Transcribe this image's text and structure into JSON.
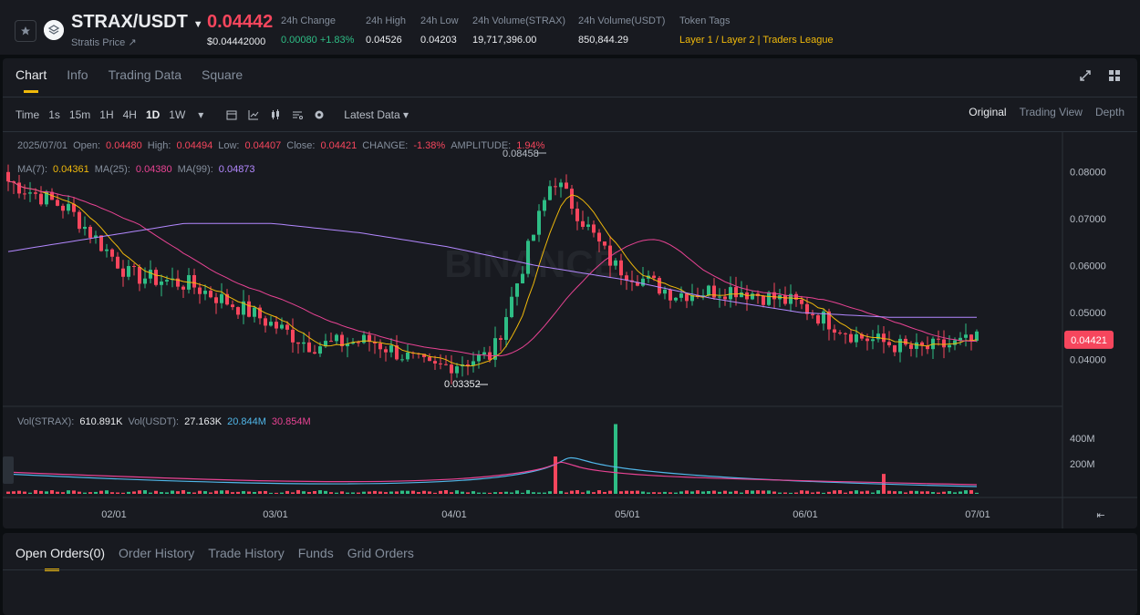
{
  "header": {
    "pair": "STRAX/USDT",
    "subname": "Stratis Price ↗",
    "last_price": "0.04442",
    "last_price_usd": "$0.04442000",
    "stats": [
      {
        "label": "24h Change",
        "value": "0.00080 +1.83%",
        "tone": "green"
      },
      {
        "label": "24h High",
        "value": "0.04526",
        "tone": "plain"
      },
      {
        "label": "24h Low",
        "value": "0.04203",
        "tone": "plain"
      },
      {
        "label": "24h Volume(STRAX)",
        "value": "19,717,396.00",
        "tone": "plain"
      },
      {
        "label": "24h Volume(USDT)",
        "value": "850,844.29",
        "tone": "plain"
      },
      {
        "label": "Token Tags",
        "value": "Layer 1 / Layer 2 | Traders League",
        "tone": "yellow"
      }
    ]
  },
  "chart_tabs": [
    "Chart",
    "Info",
    "Trading Data",
    "Square"
  ],
  "toolbar": {
    "intervals": [
      "Time",
      "1s",
      "15m",
      "1H",
      "4H",
      "1D",
      "1W"
    ],
    "active_interval": "1D",
    "latest_data": "Latest Data",
    "views": [
      "Original",
      "Trading View",
      "Depth"
    ],
    "active_view": "Original"
  },
  "ohlc": {
    "date": "2025/07/01",
    "open_label": "Open:",
    "open": "0.04480",
    "high_label": "High:",
    "high": "0.04494",
    "low_label": "Low:",
    "low": "0.04407",
    "close_label": "Close:",
    "close": "0.04421",
    "change_label": "CHANGE:",
    "change": "-1.38%",
    "amplitude_label": "AMPLITUDE:",
    "amplitude": "1.94%"
  },
  "ma": {
    "ma7_label": "MA(7):",
    "ma7": "0.04361",
    "ma25_label": "MA(25):",
    "ma25": "0.04380",
    "ma99_label": "MA(99):",
    "ma99": "0.04873"
  },
  "vol": {
    "strax_label": "Vol(STRAX):",
    "strax": "610.891K",
    "usdt_label": "Vol(USDT):",
    "usdt": "27.163K",
    "v1": "20.844M",
    "v2": "30.854M"
  },
  "colors": {
    "up": "#2ebd85",
    "down": "#f6465d",
    "ma7": "#f0b90b",
    "ma25": "#e84393",
    "ma99": "#b388ff",
    "vol_ma1": "#50b6e8",
    "vol_ma2": "#e84393"
  },
  "chart_data": {
    "type": "candlestick",
    "interval": "1D",
    "price_axis": [
      "0.08000",
      "0.07000",
      "0.06000",
      "0.05000",
      "0.04000"
    ],
    "volume_axis": [
      "400M",
      "200M"
    ],
    "date_axis": [
      "02/01",
      "03/01",
      "04/01",
      "05/01",
      "06/01",
      "07/01"
    ],
    "high_marker": "0.08458",
    "low_marker": "0.03352",
    "current_price_tag": "0.04421",
    "watermark": "BINANCE",
    "ma99_approx": [
      0.063,
      0.066,
      0.069,
      0.069,
      0.067,
      0.064,
      0.06,
      0.057,
      0.053,
      0.05,
      0.049,
      0.049
    ],
    "close_approx": [
      0.078,
      0.072,
      0.058,
      0.056,
      0.05,
      0.043,
      0.044,
      0.038,
      0.041,
      0.079,
      0.06,
      0.054,
      0.055,
      0.052,
      0.045,
      0.042,
      0.044
    ],
    "volume_spikes": [
      {
        "label": "04/09",
        "value_m": 300
      },
      {
        "label": "04/18",
        "value_m": 560
      },
      {
        "label": "06/06",
        "value_m": 160
      }
    ]
  },
  "orders_tabs": [
    "Open Orders(0)",
    "Order History",
    "Trade History",
    "Funds",
    "Grid Orders"
  ]
}
